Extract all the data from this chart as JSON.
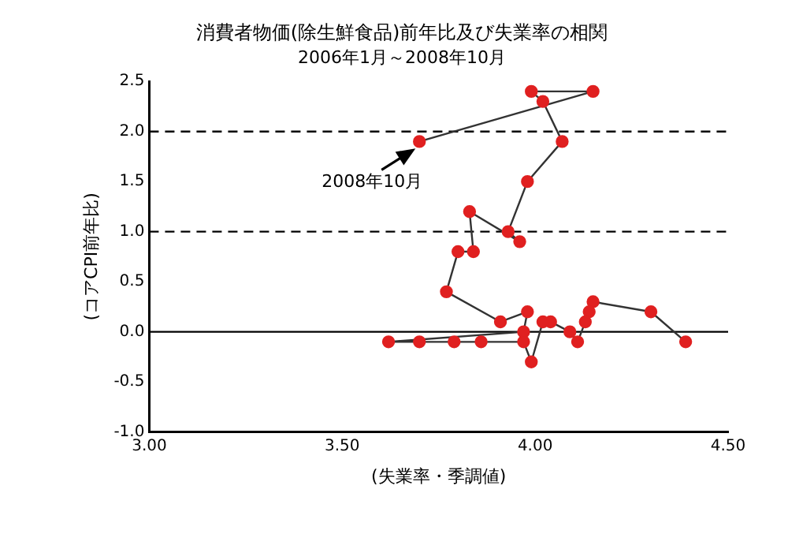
{
  "chart_data": {
    "type": "line",
    "title": "消費者物価(除生鮮食品)前年比及び失業率の相関",
    "subtitle": "2006年1月～2008年10月",
    "xlabel": "(失業率・季調値)",
    "ylabel": "(コアCPI前年比)",
    "xlim": [
      3.0,
      4.5
    ],
    "xticks": [
      {
        "value": 3.0,
        "label": "3.00"
      },
      {
        "value": 3.5,
        "label": "3.50"
      },
      {
        "value": 4.0,
        "label": "4.00"
      },
      {
        "value": 4.5,
        "label": "4.50"
      }
    ],
    "ylim": [
      -1.0,
      2.5
    ],
    "yticks": [
      {
        "value": -1.0,
        "label": "-1.0"
      },
      {
        "value": -0.5,
        "label": "-0.5"
      },
      {
        "value": 0,
        "label": "0.0"
      },
      {
        "value": 0.5,
        "label": "0.5"
      },
      {
        "value": 1.0,
        "label": "1.0"
      },
      {
        "value": 1.5,
        "label": "1.5"
      },
      {
        "value": 2.0,
        "label": "2.0"
      },
      {
        "value": 2.5,
        "label": "2.5"
      }
    ],
    "grid": false,
    "legend": false,
    "marker": "circle",
    "line_style": "solid",
    "series": [
      {
        "color": "#e02020",
        "x": [
          4.39,
          4.3,
          4.15,
          4.14,
          4.13,
          4.11,
          4.09,
          4.04,
          4.02,
          3.99,
          3.97,
          3.86,
          3.79,
          3.7,
          3.62,
          3.97,
          3.98,
          3.91,
          3.77,
          3.8,
          3.84,
          3.83,
          3.96,
          3.93,
          3.98,
          4.07,
          4.02,
          3.99,
          4.15,
          3.7
        ],
        "values": [
          -0.1,
          0.2,
          0.3,
          0.2,
          0.1,
          -0.1,
          0.0,
          0.1,
          0.1,
          -0.3,
          -0.1,
          -0.1,
          -0.1,
          -0.1,
          -0.1,
          0.0,
          0.2,
          0.1,
          0.4,
          0.8,
          0.8,
          1.2,
          0.9,
          1.0,
          1.5,
          1.9,
          2.3,
          2.4,
          2.4,
          1.9
        ]
      }
    ],
    "ref_lines": [
      {
        "axis": "y",
        "value": 0,
        "line_style": "solid",
        "color": "#000000"
      },
      {
        "axis": "y",
        "value": 1,
        "line_style": "dashed",
        "color": "#000000"
      },
      {
        "axis": "y",
        "value": 2,
        "line_style": "dashed",
        "color": "#000000"
      }
    ],
    "annotations": [
      {
        "text": "2008年10月",
        "x": 3.7,
        "y": 1.9
      }
    ]
  }
}
